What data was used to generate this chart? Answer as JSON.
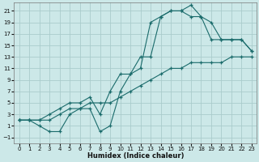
{
  "xlabel": "Humidex (Indice chaleur)",
  "bg_color": "#cce8e8",
  "grid_color": "#aacccc",
  "line_color": "#1a6b6b",
  "xlim": [
    -0.5,
    23.5
  ],
  "ylim": [
    -2,
    22.5
  ],
  "xticks": [
    0,
    1,
    2,
    3,
    4,
    5,
    6,
    7,
    8,
    9,
    10,
    11,
    12,
    13,
    14,
    15,
    16,
    17,
    18,
    19,
    20,
    21,
    22,
    23
  ],
  "yticks": [
    -1,
    1,
    3,
    5,
    7,
    9,
    11,
    13,
    15,
    17,
    19,
    21
  ],
  "line1_x": [
    0,
    1,
    2,
    3,
    4,
    5,
    6,
    7,
    8,
    9,
    10,
    11,
    12,
    13,
    14,
    15,
    16,
    17,
    18,
    19,
    20,
    21,
    22,
    23
  ],
  "line1_y": [
    2,
    2,
    2,
    2,
    3,
    4,
    4,
    5,
    5,
    5,
    6,
    7,
    8,
    9,
    10,
    11,
    11,
    12,
    12,
    12,
    12,
    13,
    13,
    13
  ],
  "line2_x": [
    0,
    1,
    2,
    3,
    4,
    5,
    6,
    7,
    8,
    9,
    10,
    11,
    12,
    13,
    14,
    15,
    16,
    17,
    18,
    19,
    20,
    21,
    22,
    23
  ],
  "line2_y": [
    2,
    2,
    1,
    0,
    0,
    3,
    4,
    4,
    0,
    1,
    7,
    10,
    11,
    19,
    20,
    21,
    21,
    22,
    20,
    16,
    16,
    16,
    16,
    14
  ],
  "line3_x": [
    0,
    1,
    2,
    3,
    4,
    5,
    6,
    7,
    8,
    9,
    10,
    11,
    12,
    13,
    14,
    15,
    16,
    17,
    18,
    19,
    20,
    21,
    22,
    23
  ],
  "line3_y": [
    2,
    2,
    2,
    3,
    4,
    5,
    5,
    6,
    3,
    7,
    10,
    10,
    13,
    13,
    20,
    21,
    21,
    20,
    20,
    19,
    16,
    16,
    16,
    14
  ]
}
